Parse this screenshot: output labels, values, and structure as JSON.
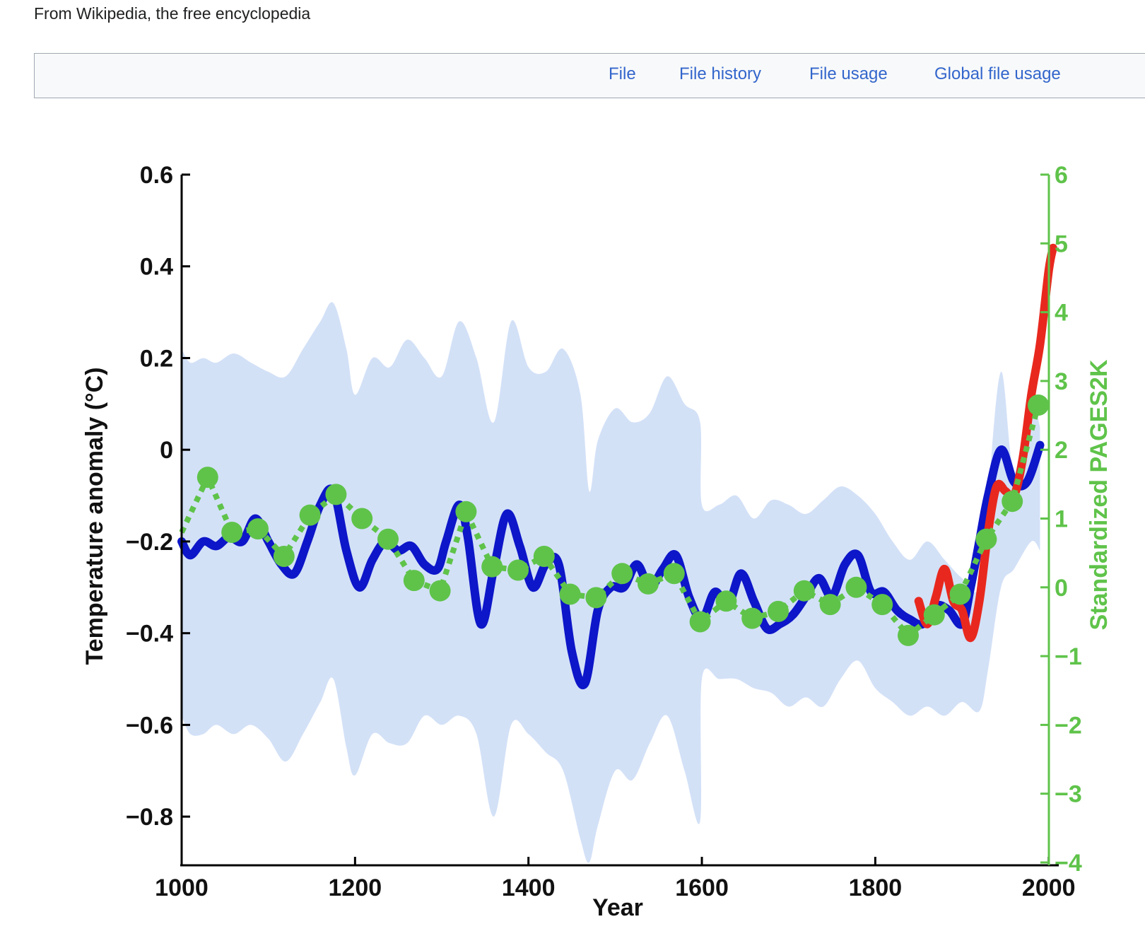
{
  "page": {
    "tagline": "From Wikipedia, the free encyclopedia",
    "tabs": [
      {
        "label": "File"
      },
      {
        "label": "File history"
      },
      {
        "label": "File usage"
      },
      {
        "label": "Global file usage"
      }
    ],
    "link_color": "#3366cc"
  },
  "chart_data": {
    "type": "line",
    "xlabel": "Year",
    "ylabel": "Temperature anomaly (°C)",
    "y2label": "Standardized PAGES2K",
    "xlim": [
      1000,
      2010
    ],
    "ylim": [
      -0.9,
      0.6
    ],
    "y2lim": [
      -4,
      6
    ],
    "xticks": [
      "1000",
      "1200",
      "1400",
      "1600",
      "1800",
      "2000"
    ],
    "xtick_values": [
      1000,
      1200,
      1400,
      1600,
      1800,
      2000
    ],
    "yticks": [
      "0.6",
      "0.4",
      "0.2",
      "0",
      "−0.2",
      "−0.4",
      "−0.6",
      "−0.8"
    ],
    "ytick_values": [
      0.6,
      0.4,
      0.2,
      0,
      -0.2,
      -0.4,
      -0.6,
      -0.8
    ],
    "y2ticks": [
      "6",
      "5",
      "4",
      "3",
      "2",
      "1",
      "0",
      "−1",
      "−2",
      "−3",
      "−4"
    ],
    "y2tick_values": [
      6,
      5,
      4,
      3,
      2,
      1,
      0,
      -1,
      -2,
      -3,
      -4
    ],
    "colors": {
      "uncertainty_band": "#d3e1f7",
      "reconstruction": "#0d16c8",
      "instrumental": "#e8281e",
      "pages2k": "#5fc34a",
      "axis": "#000000"
    },
    "series": [
      {
        "kind": "band",
        "x": [
          1000,
          1010,
          1025,
          1040,
          1060,
          1080,
          1100,
          1120,
          1140,
          1160,
          1175,
          1190,
          1200,
          1220,
          1240,
          1260,
          1280,
          1300,
          1320,
          1340,
          1360,
          1380,
          1400,
          1420,
          1440,
          1460,
          1470,
          1480,
          1500,
          1520,
          1540,
          1560,
          1580,
          1598,
          1600,
          1620,
          1640,
          1660,
          1680,
          1700,
          1720,
          1740,
          1760,
          1780,
          1800,
          1820,
          1840,
          1860,
          1880,
          1900,
          1920,
          1930,
          1945,
          1960,
          1980,
          1990
        ],
        "upper": [
          0.22,
          0.19,
          0.2,
          0.19,
          0.21,
          0.19,
          0.17,
          0.16,
          0.22,
          0.28,
          0.32,
          0.22,
          0.12,
          0.2,
          0.18,
          0.24,
          0.2,
          0.16,
          0.28,
          0.2,
          0.06,
          0.28,
          0.18,
          0.17,
          0.22,
          0.12,
          -0.09,
          0.02,
          0.09,
          0.06,
          0.08,
          0.16,
          0.1,
          0.06,
          -0.12,
          -0.12,
          -0.1,
          -0.15,
          -0.11,
          -0.12,
          -0.14,
          -0.11,
          -0.08,
          -0.1,
          -0.14,
          -0.2,
          -0.24,
          -0.2,
          -0.24,
          -0.28,
          -0.3,
          -0.1,
          0.17,
          -0.05,
          0.1,
          0.05
        ],
        "lower": [
          -0.58,
          -0.62,
          -0.62,
          -0.6,
          -0.62,
          -0.6,
          -0.63,
          -0.68,
          -0.62,
          -0.55,
          -0.5,
          -0.65,
          -0.71,
          -0.62,
          -0.64,
          -0.64,
          -0.58,
          -0.6,
          -0.58,
          -0.62,
          -0.8,
          -0.6,
          -0.62,
          -0.66,
          -0.7,
          -0.85,
          -0.9,
          -0.82,
          -0.7,
          -0.72,
          -0.64,
          -0.58,
          -0.7,
          -0.81,
          -0.5,
          -0.5,
          -0.5,
          -0.52,
          -0.53,
          -0.56,
          -0.54,
          -0.56,
          -0.5,
          -0.46,
          -0.52,
          -0.55,
          -0.58,
          -0.56,
          -0.58,
          -0.55,
          -0.57,
          -0.48,
          -0.3,
          -0.26,
          -0.2,
          -0.22
        ]
      },
      {
        "kind": "line",
        "key": "reconstruction",
        "x": [
          1000,
          1010,
          1025,
          1040,
          1055,
          1070,
          1085,
          1100,
          1115,
          1130,
          1145,
          1160,
          1175,
          1190,
          1205,
          1220,
          1235,
          1250,
          1265,
          1280,
          1295,
          1305,
          1320,
          1330,
          1345,
          1360,
          1375,
          1390,
          1405,
          1420,
          1435,
          1450,
          1465,
          1480,
          1495,
          1510,
          1525,
          1540,
          1555,
          1570,
          1585,
          1600,
          1615,
          1630,
          1645,
          1660,
          1675,
          1690,
          1705,
          1720,
          1735,
          1750,
          1765,
          1780,
          1795,
          1810,
          1825,
          1840,
          1855,
          1870,
          1885,
          1900,
          1910,
          1920,
          1930,
          1945,
          1960,
          1975,
          1990
        ],
        "y": [
          -0.2,
          -0.23,
          -0.2,
          -0.21,
          -0.19,
          -0.2,
          -0.15,
          -0.2,
          -0.25,
          -0.27,
          -0.2,
          -0.12,
          -0.09,
          -0.22,
          -0.3,
          -0.24,
          -0.2,
          -0.22,
          -0.21,
          -0.25,
          -0.26,
          -0.2,
          -0.12,
          -0.19,
          -0.38,
          -0.26,
          -0.14,
          -0.21,
          -0.3,
          -0.25,
          -0.25,
          -0.44,
          -0.51,
          -0.35,
          -0.3,
          -0.3,
          -0.25,
          -0.3,
          -0.26,
          -0.23,
          -0.32,
          -0.37,
          -0.31,
          -0.34,
          -0.27,
          -0.33,
          -0.39,
          -0.38,
          -0.36,
          -0.32,
          -0.28,
          -0.32,
          -0.25,
          -0.23,
          -0.31,
          -0.31,
          -0.35,
          -0.37,
          -0.38,
          -0.34,
          -0.35,
          -0.38,
          -0.3,
          -0.2,
          -0.1,
          0.0,
          -0.07,
          -0.07,
          0.01
        ]
      },
      {
        "kind": "line",
        "key": "instrumental",
        "x": [
          1850,
          1860,
          1870,
          1880,
          1890,
          1900,
          1910,
          1920,
          1930,
          1940,
          1950,
          1960,
          1970,
          1980,
          1990,
          2000,
          2005
        ],
        "y": [
          -0.33,
          -0.38,
          -0.32,
          -0.26,
          -0.33,
          -0.35,
          -0.41,
          -0.33,
          -0.18,
          -0.08,
          -0.09,
          -0.1,
          -0.02,
          0.12,
          0.23,
          0.39,
          0.44
        ]
      },
      {
        "kind": "dotted",
        "key": "pages2k",
        "x": [
          1000,
          1030,
          1058,
          1088,
          1118,
          1148,
          1178,
          1208,
          1238,
          1268,
          1298,
          1328,
          1358,
          1388,
          1418,
          1448,
          1478,
          1508,
          1538,
          1568,
          1598,
          1628,
          1658,
          1688,
          1718,
          1748,
          1778,
          1808,
          1838,
          1868,
          1898,
          1928,
          1958,
          1988
        ],
        "y2": [
          0.8,
          1.6,
          0.8,
          0.85,
          0.45,
          1.05,
          1.35,
          1.0,
          0.7,
          0.1,
          -0.05,
          1.1,
          0.3,
          0.25,
          0.45,
          -0.1,
          -0.15,
          0.2,
          0.05,
          0.2,
          -0.5,
          -0.2,
          -0.45,
          -0.35,
          -0.05,
          -0.25,
          0.0,
          -0.25,
          -0.7,
          -0.4,
          -0.1,
          0.7,
          1.25,
          2.65
        ]
      }
    ]
  }
}
